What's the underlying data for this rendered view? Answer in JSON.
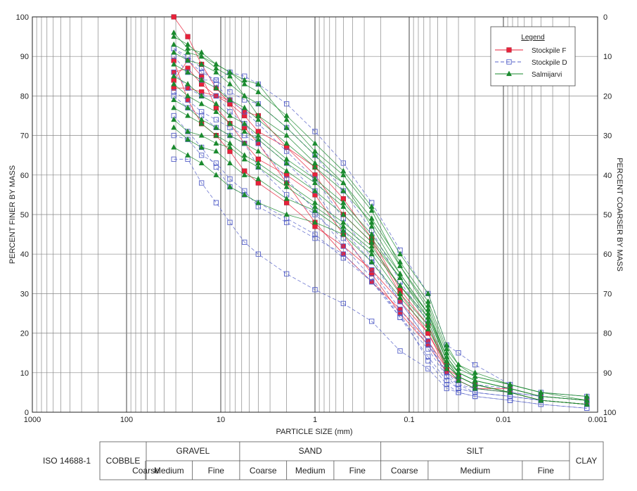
{
  "chart_data": {
    "type": "line",
    "xlabel": "PARTICLE SIZE (mm)",
    "ylabel_left": "PERCENT FINER BY MASS",
    "ylabel_right": "PERCENT COARSER BY MASS",
    "x_scale": "log",
    "x_reversed": true,
    "xlim": [
      1000,
      0.001
    ],
    "ylim": [
      0,
      100
    ],
    "grid": true,
    "x_tick_labels": [
      "1000",
      "100",
      "10",
      "1",
      "0.1",
      "0.01",
      "0.001"
    ],
    "y_ticks_left": [
      0,
      10,
      20,
      30,
      40,
      50,
      60,
      70,
      80,
      90,
      100
    ],
    "y_ticks_right": [
      100,
      90,
      80,
      70,
      60,
      50,
      40,
      30,
      20,
      10,
      0
    ],
    "sieve_sizes_mm": [
      31.5,
      22.4,
      16,
      11.2,
      8,
      5.6,
      4,
      2,
      1,
      0.5,
      0.25,
      0.125,
      0.063,
      0.04,
      0.03,
      0.02,
      0.0085,
      0.004,
      0.0013
    ],
    "legend": {
      "title": "Legend",
      "position": "top-right",
      "entries": [
        {
          "name": "Stockpile  F",
          "color": "#e8213a",
          "marker": "square-filled",
          "line": "solid"
        },
        {
          "name": "Stockpile  D",
          "color": "#5560c8",
          "marker": "square-open",
          "line": "dashed"
        },
        {
          "name": "Salmijarvi",
          "color": "#1a8a2e",
          "marker": "triangle",
          "line": "solid"
        }
      ]
    },
    "series": [
      {
        "group": "Stockpile  F",
        "values": [
          100,
          95,
          88,
          82,
          78,
          72,
          68,
          58,
          48,
          40,
          33,
          26,
          18,
          11,
          9,
          7,
          5,
          3,
          2
        ]
      },
      {
        "group": "Stockpile  F",
        "values": [
          89,
          79,
          73,
          70,
          66,
          61,
          58,
          53,
          47,
          42,
          36,
          28,
          20,
          12,
          9,
          7,
          5,
          3,
          2
        ]
      },
      {
        "group": "Stockpile  F",
        "values": [
          82,
          82,
          81,
          80,
          78,
          75,
          71,
          67,
          62,
          54,
          44,
          31,
          22,
          12,
          9,
          7,
          5,
          3,
          2
        ]
      },
      {
        "group": "Stockpile  F",
        "values": [
          84,
          89,
          85,
          77,
          73,
          68,
          64,
          60,
          55,
          45,
          35,
          25,
          17,
          10,
          8,
          6,
          5,
          3,
          2
        ]
      },
      {
        "group": "Stockpile  F",
        "values": [
          86,
          87,
          83,
          80,
          79,
          76,
          75,
          67,
          60,
          50,
          43,
          30,
          20,
          11,
          8,
          6,
          6,
          4,
          3
        ]
      },
      {
        "group": "Stockpile  D",
        "values": [
          64,
          64,
          58,
          53,
          48,
          43,
          40,
          35,
          31,
          27.5,
          23,
          15.5,
          11,
          6,
          5,
          4,
          3,
          2,
          1
        ]
      },
      {
        "group": "Stockpile  D",
        "values": [
          75,
          71,
          67,
          62,
          57,
          55,
          53,
          49,
          45,
          39,
          33,
          24,
          14,
          8,
          6,
          5,
          4,
          3,
          2
        ]
      },
      {
        "group": "Stockpile  D",
        "values": [
          80,
          77,
          75,
          72,
          70,
          68,
          62,
          55,
          50,
          44,
          36,
          26,
          17,
          10,
          7,
          6,
          5,
          4,
          3
        ]
      },
      {
        "group": "Stockpile  D",
        "values": [
          86,
          82,
          80,
          80,
          76,
          73,
          69,
          63,
          56,
          46,
          38,
          28,
          18,
          10,
          8,
          6,
          5,
          4,
          3
        ]
      },
      {
        "group": "Stockpile  D",
        "values": [
          90,
          86,
          84,
          84,
          86,
          85,
          83,
          78,
          71,
          63,
          53,
          41,
          30,
          17,
          15,
          12,
          7,
          5,
          4
        ]
      },
      {
        "group": "Stockpile  D",
        "values": [
          92,
          89,
          86,
          84,
          81,
          79,
          78,
          72,
          65,
          56,
          46,
          33,
          23,
          12,
          9,
          7,
          6,
          4,
          3
        ]
      },
      {
        "group": "Stockpile  D",
        "values": [
          81,
          79,
          76,
          74,
          72,
          70,
          68,
          59,
          51,
          42,
          34,
          24,
          16,
          9,
          6,
          5,
          4,
          3,
          2
        ]
      },
      {
        "group": "Stockpile  D",
        "values": [
          92,
          90,
          87,
          83,
          79,
          76,
          73,
          66,
          59,
          49,
          39,
          28,
          18,
          9,
          7,
          5,
          4,
          3,
          2
        ]
      },
      {
        "group": "Stockpile  D",
        "values": [
          70,
          69,
          65,
          63,
          59,
          56,
          52,
          48,
          44,
          40,
          33,
          25,
          13,
          7,
          5,
          4,
          3,
          2,
          1
        ]
      },
      {
        "group": "Salmijarvi",
        "values": [
          96,
          92,
          91,
          88,
          86,
          84,
          83,
          74,
          66,
          60,
          51,
          37,
          26,
          14,
          10,
          8,
          6,
          4,
          3
        ]
      },
      {
        "group": "Salmijarvi",
        "values": [
          95,
          93,
          90,
          87,
          85,
          80,
          75,
          70,
          63,
          58,
          47,
          35,
          25,
          14,
          10,
          8,
          6,
          4,
          3
        ]
      },
      {
        "group": "Salmijarvi",
        "values": [
          67,
          65,
          63,
          60,
          57,
          55,
          53,
          50,
          48,
          45,
          38,
          29,
          21,
          12,
          9,
          7,
          5,
          3,
          2
        ]
      },
      {
        "group": "Salmijarvi",
        "values": [
          72,
          69,
          67,
          66,
          63,
          60,
          59,
          54,
          51,
          46,
          40,
          30,
          22,
          11,
          8,
          6,
          5,
          3,
          2
        ]
      },
      {
        "group": "Salmijarvi",
        "values": [
          74,
          71,
          70,
          68,
          67,
          64,
          62,
          57,
          52,
          47,
          41,
          32,
          24,
          13,
          9,
          7,
          5,
          3,
          2
        ]
      },
      {
        "group": "Salmijarvi",
        "values": [
          79,
          77,
          74,
          72,
          70,
          68,
          66,
          61,
          56,
          50,
          43,
          34,
          24,
          13,
          10,
          8,
          6,
          4,
          3
        ]
      },
      {
        "group": "Salmijarvi",
        "values": [
          85,
          83,
          80,
          78,
          75,
          73,
          70,
          64,
          59,
          53,
          45,
          35,
          25,
          14,
          10,
          8,
          6,
          4,
          3
        ]
      },
      {
        "group": "Salmijarvi",
        "values": [
          88,
          86,
          84,
          82,
          79,
          77,
          74,
          68,
          62,
          56,
          48,
          37,
          27,
          15,
          11,
          9,
          7,
          5,
          3
        ]
      },
      {
        "group": "Salmijarvi",
        "values": [
          91,
          89,
          88,
          86,
          83,
          80,
          78,
          72,
          65,
          58,
          49,
          38,
          28,
          16,
          12,
          9,
          7,
          5,
          4
        ]
      },
      {
        "group": "Salmijarvi",
        "values": [
          93,
          91,
          90,
          88,
          86,
          83,
          81,
          75,
          68,
          61,
          52,
          40,
          30,
          17,
          12,
          10,
          7,
          5,
          4
        ]
      },
      {
        "group": "Salmijarvi",
        "values": [
          83,
          80,
          78,
          76,
          73,
          71,
          69,
          63,
          58,
          52,
          44,
          34,
          25,
          13,
          9,
          7,
          5,
          3,
          2
        ]
      },
      {
        "group": "Salmijarvi",
        "values": [
          77,
          75,
          73,
          70,
          68,
          65,
          63,
          58,
          53,
          48,
          42,
          32,
          23,
          12,
          9,
          7,
          5,
          3,
          2
        ]
      }
    ],
    "classification": {
      "standard": "ISO 14688-1",
      "groups": [
        {
          "name": "COBBLE",
          "subs": []
        },
        {
          "name": "GRAVEL",
          "subs": [
            "Coarse",
            "Medium",
            "Fine"
          ]
        },
        {
          "name": "SAND",
          "subs": [
            "Coarse",
            "Medium",
            "Fine"
          ]
        },
        {
          "name": "SILT",
          "subs": [
            "Coarse",
            "Medium",
            "Fine"
          ]
        },
        {
          "name": "CLAY",
          "subs": []
        }
      ]
    }
  }
}
